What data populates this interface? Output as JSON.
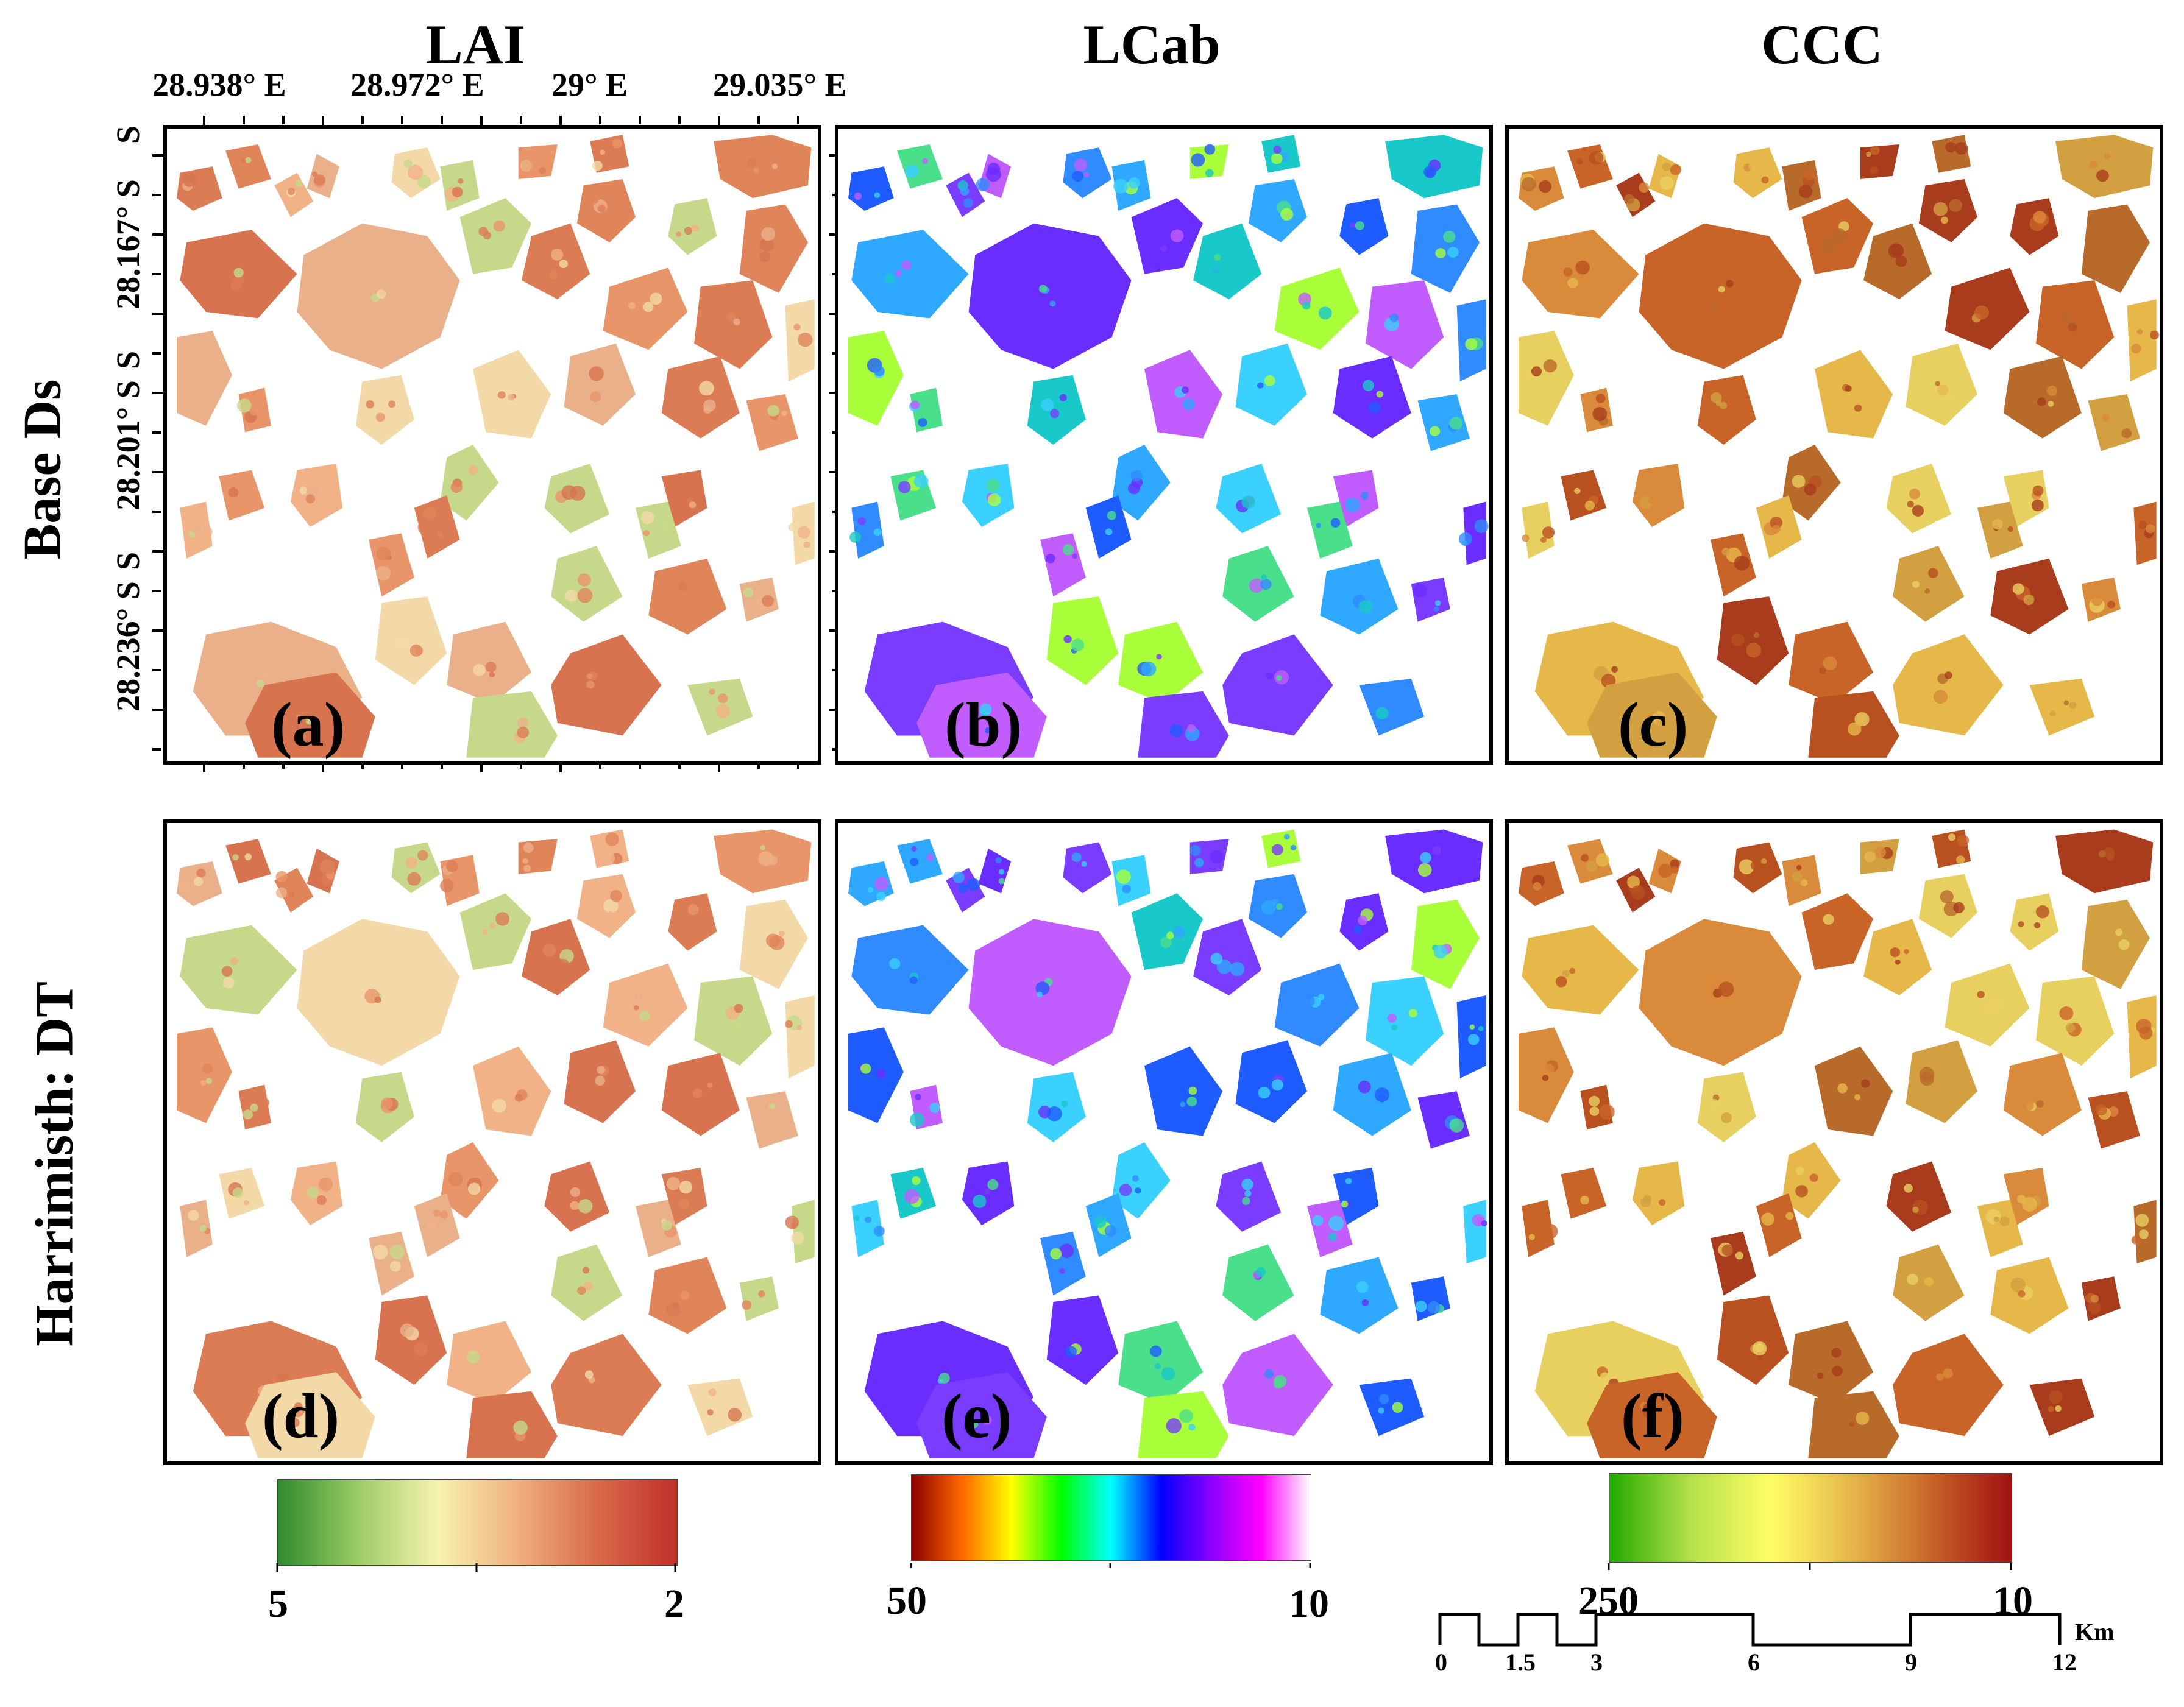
{
  "columns": [
    "LAI",
    "LCab",
    "CCC"
  ],
  "rows": [
    "Base Ds",
    "Harrimisth: DT"
  ],
  "panels": [
    {
      "id": "a",
      "label": "(a)",
      "palette": "lai"
    },
    {
      "id": "b",
      "label": "(b)",
      "palette": "lcab"
    },
    {
      "id": "c",
      "label": "(c)",
      "palette": "ccc"
    },
    {
      "id": "d",
      "label": "(d)",
      "palette": "lai"
    },
    {
      "id": "e",
      "label": "(e)",
      "palette": "lcab"
    },
    {
      "id": "f",
      "label": "(f)",
      "palette": "ccc"
    }
  ],
  "longitudes": [
    "28.938° E",
    "28.972° E",
    "29° E",
    "29.035° E"
  ],
  "latitudes": [
    "28.167° S",
    "28.201° S",
    "28.236° S"
  ],
  "colorbars": {
    "lai": {
      "min_label": "5",
      "max_label": "2",
      "colors": [
        "#2e8b2e",
        "#9ccc65",
        "#f7f3b0",
        "#f0b080",
        "#d96a4a",
        "#c0302a"
      ]
    },
    "lcab": {
      "min_label": "50",
      "max_label": "10",
      "colors": [
        "#8b0000",
        "#ff6600",
        "#ffff00",
        "#00ff00",
        "#00ffff",
        "#0000ff",
        "#8b00ff",
        "#ff00ff",
        "#ffffff"
      ]
    },
    "ccc": {
      "min_label": "250",
      "max_label": "10",
      "colors": [
        "#22aa00",
        "#b4e04a",
        "#ffff66",
        "#e6b84a",
        "#c86428",
        "#a01010"
      ]
    }
  },
  "scalebar": {
    "ticks": [
      "0",
      "1.5",
      "3",
      "6",
      "9",
      "12"
    ],
    "unit": "Km"
  }
}
